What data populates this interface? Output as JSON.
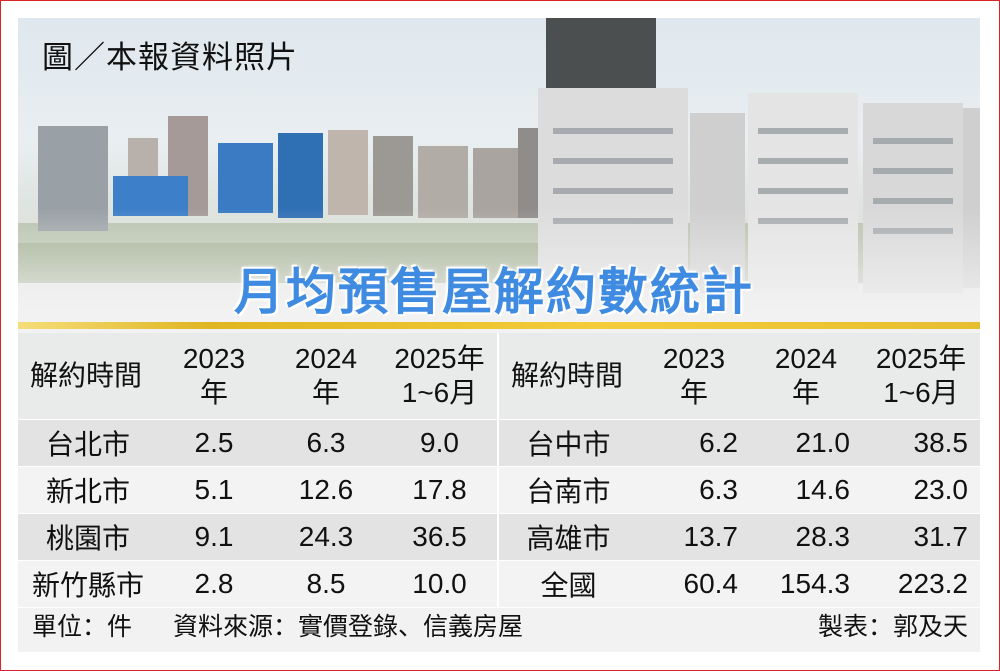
{
  "photo_credit": "圖／本報資料照片",
  "headline": "月均預售屋解約數統計",
  "table": {
    "headers_left": [
      "解約時間",
      "2023年",
      "2024年",
      "2025年",
      "1~6月"
    ],
    "headers_right": [
      "解約時間",
      "2023年",
      "2024年",
      "2025年",
      "1~6月"
    ],
    "rows_left": [
      {
        "name": "台北市",
        "v2023": "2.5",
        "v2024": "6.3",
        "v2025": "9.0"
      },
      {
        "name": "新北市",
        "v2023": "5.1",
        "v2024": "12.6",
        "v2025": "17.8"
      },
      {
        "name": "桃園市",
        "v2023": "9.1",
        "v2024": "24.3",
        "v2025": "36.5"
      },
      {
        "name": "新竹縣市",
        "v2023": "2.8",
        "v2024": "8.5",
        "v2025": "10.0"
      }
    ],
    "rows_right": [
      {
        "name": "台中市",
        "v2023": "6.2",
        "v2024": "21.0",
        "v2025": "38.5"
      },
      {
        "name": "台南市",
        "v2023": "6.3",
        "v2024": "14.6",
        "v2025": "23.0"
      },
      {
        "name": "高雄市",
        "v2023": "13.7",
        "v2024": "28.3",
        "v2025": "31.7"
      },
      {
        "name": "全國",
        "v2023": "60.4",
        "v2024": "154.3",
        "v2025": "223.2"
      }
    ]
  },
  "footer": {
    "unit": "單位：件",
    "source": "資料來源：實價登錄、信義房屋",
    "maker": "製表：郭及天"
  },
  "colors": {
    "headline": "#3f8be2",
    "border": "#d8232a",
    "rule": "#e0b520"
  }
}
